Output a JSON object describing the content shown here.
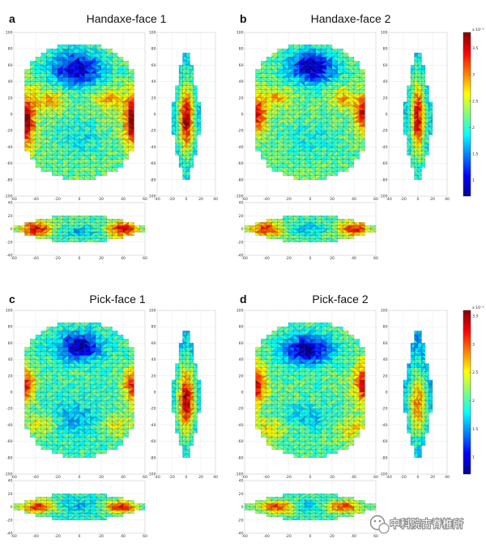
{
  "chart_data": [
    {
      "type": "heatmap",
      "label": "a",
      "title": "Handaxe-face 1",
      "views": {
        "front": {
          "xlim": [
            -60,
            60
          ],
          "ylim": [
            -100,
            100
          ],
          "xticks": [
            -60,
            -40,
            -20,
            0,
            20,
            40,
            60
          ],
          "yticks": [
            -100,
            -80,
            -60,
            -40,
            -20,
            0,
            20,
            40,
            60,
            80,
            100
          ]
        },
        "side": {
          "xlim": [
            -40,
            40
          ],
          "ylim": [
            -100,
            100
          ],
          "xticks": [
            -40,
            -20,
            0,
            20,
            40
          ]
        },
        "bottom": {
          "xlim": [
            -60,
            60
          ],
          "ylim": [
            -40,
            40
          ],
          "xticks": [
            -60,
            -40,
            -20,
            0,
            20,
            40,
            60
          ],
          "yticks": [
            -40,
            -20,
            0,
            20,
            40
          ]
        }
      }
    },
    {
      "type": "heatmap",
      "label": "b",
      "title": "Handaxe-face 2",
      "views": {
        "front": {
          "xlim": [
            -60,
            60
          ],
          "ylim": [
            -100,
            100
          ],
          "xticks": [
            -60,
            -40,
            -20,
            0,
            20,
            40,
            60
          ],
          "yticks": [
            -100,
            -80,
            -60,
            -40,
            -20,
            0,
            20,
            40,
            60,
            80,
            100
          ]
        },
        "side": {
          "xlim": [
            -40,
            40
          ],
          "ylim": [
            -100,
            100
          ],
          "xticks": [
            -40,
            -20,
            0,
            20,
            40
          ]
        },
        "bottom": {
          "xlim": [
            -60,
            60
          ],
          "ylim": [
            -40,
            40
          ],
          "xticks": [
            -60,
            -40,
            -20,
            0,
            20,
            40,
            60
          ],
          "yticks": [
            -40,
            -20,
            0,
            20,
            40
          ]
        }
      },
      "colorbar": {
        "exponent": "x 10⁻³",
        "ticks": [
          1,
          1.5,
          2,
          2.5,
          3,
          3.5
        ],
        "range": [
          0.7,
          3.8
        ]
      }
    },
    {
      "type": "heatmap",
      "label": "c",
      "title": "Pick-face 1",
      "views": {
        "front": {
          "xlim": [
            -60,
            60
          ],
          "ylim": [
            -100,
            100
          ],
          "xticks": [
            -60,
            -40,
            -20,
            0,
            20,
            40,
            60
          ],
          "yticks": [
            -100,
            -80,
            -60,
            -40,
            -20,
            0,
            20,
            40,
            60,
            80,
            100
          ]
        },
        "side": {
          "xlim": [
            -40,
            40
          ],
          "ylim": [
            -100,
            100
          ],
          "xticks": [
            -40,
            -20,
            0,
            20,
            40
          ]
        },
        "bottom": {
          "xlim": [
            -60,
            60
          ],
          "ylim": [
            -40,
            40
          ],
          "xticks": [
            -60,
            -40,
            -20,
            0,
            20,
            40,
            60
          ],
          "yticks": [
            -40,
            -20,
            0,
            20,
            40
          ]
        }
      }
    },
    {
      "type": "heatmap",
      "label": "d",
      "title": "Pick-face 2",
      "views": {
        "front": {
          "xlim": [
            -60,
            60
          ],
          "ylim": [
            -100,
            100
          ],
          "xticks": [
            -60,
            -40,
            -20,
            0,
            20,
            40,
            60
          ],
          "yticks": [
            -100,
            -80,
            -60,
            -40,
            -20,
            0,
            20,
            40,
            60,
            80,
            100
          ]
        },
        "side": {
          "xlim": [
            -40,
            40
          ],
          "ylim": [
            -100,
            100
          ],
          "xticks": [
            -40,
            -20,
            0,
            20,
            40
          ]
        },
        "bottom": {
          "xlim": [
            -60,
            60
          ],
          "ylim": [
            -40,
            40
          ],
          "xticks": [
            -60,
            -40,
            -20,
            0,
            20,
            40,
            60
          ],
          "yticks": [
            -40,
            -20,
            0,
            20,
            40
          ]
        }
      },
      "colorbar": {
        "exponent": "x 10⁻³",
        "ticks": [
          1,
          1.5,
          2,
          2.5,
          3,
          3.5
        ],
        "range": [
          0.7,
          3.6
        ]
      }
    }
  ],
  "watermark": {
    "text": "中科院古脊椎所",
    "icon": "wechat-icon"
  }
}
